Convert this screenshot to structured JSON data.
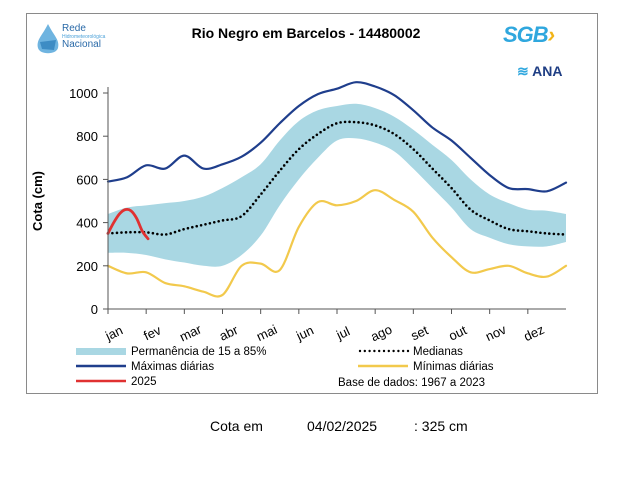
{
  "header": {
    "title": "Rio Negro em Barcelos - 14480002",
    "logo_rede": {
      "line1": "Rede",
      "line2": "Hidrometeorológica",
      "line3": "Nacional"
    },
    "logo_sgb": "SGB",
    "logo_ana": "ANA"
  },
  "footer": {
    "label": "Cota em",
    "date": "04/02/2025",
    "value": ": 325 cm"
  },
  "chart_data": {
    "type": "line",
    "title": "Rio Negro em Barcelos - 14480002",
    "xlabel": "",
    "ylabel": "Cota (cm)",
    "ylim": [
      0,
      1000
    ],
    "yticks": [
      0,
      200,
      400,
      600,
      800,
      1000
    ],
    "ytick_labels": [
      "0",
      "200",
      "400",
      "600",
      "800",
      "1000"
    ],
    "xlim": [
      0,
      12
    ],
    "xticks": [
      0,
      1,
      2,
      3,
      4,
      5,
      6,
      7,
      8,
      9,
      10,
      11
    ],
    "xtick_labels": [
      "jan",
      "fev",
      "mar",
      "abr",
      "mai",
      "jun",
      "jul",
      "ago",
      "set",
      "out",
      "nov",
      "dez"
    ],
    "x": [
      0,
      0.5,
      1,
      1.5,
      2,
      2.5,
      3,
      3.5,
      4,
      4.5,
      5,
      5.5,
      6,
      6.5,
      7,
      7.5,
      8,
      8.5,
      9,
      9.5,
      10,
      10.5,
      11,
      11.5,
      12
    ],
    "series": [
      {
        "name": "Máximas diárias",
        "color": "#1f3e8c",
        "values": [
          590,
          610,
          665,
          650,
          710,
          650,
          670,
          705,
          770,
          860,
          940,
          995,
          1020,
          1050,
          1030,
          990,
          920,
          840,
          780,
          700,
          620,
          560,
          555,
          545,
          585
        ]
      },
      {
        "name": "Permanência 85%",
        "color": "#a9d7e3",
        "role": "band_upper",
        "values": [
          440,
          470,
          480,
          490,
          500,
          520,
          560,
          610,
          670,
          780,
          870,
          920,
          940,
          950,
          930,
          890,
          830,
          760,
          690,
          600,
          530,
          490,
          460,
          455,
          440
        ]
      },
      {
        "name": "Permanência 15%",
        "color": "#a9d7e3",
        "role": "band_lower",
        "values": [
          260,
          260,
          250,
          230,
          215,
          200,
          200,
          250,
          340,
          480,
          600,
          700,
          780,
          790,
          770,
          730,
          650,
          560,
          470,
          370,
          330,
          300,
          290,
          290,
          310
        ]
      },
      {
        "name": "Medianas",
        "color": "#000000",
        "style": "dotted",
        "values": [
          350,
          355,
          355,
          345,
          370,
          390,
          410,
          430,
          530,
          640,
          740,
          810,
          860,
          865,
          850,
          810,
          740,
          650,
          560,
          460,
          410,
          370,
          360,
          350,
          345
        ]
      },
      {
        "name": "Mínimas diárias",
        "color": "#f2c94c",
        "values": [
          200,
          165,
          170,
          120,
          105,
          80,
          65,
          200,
          210,
          180,
          380,
          495,
          480,
          500,
          550,
          505,
          450,
          330,
          240,
          170,
          185,
          200,
          165,
          150,
          200
        ]
      },
      {
        "name": "2025",
        "color": "#e03131",
        "x": [
          0,
          0.15,
          0.3,
          0.45,
          0.6,
          0.75,
          0.9,
          1.05
        ],
        "values": [
          350,
          400,
          440,
          460,
          455,
          420,
          360,
          325
        ]
      }
    ],
    "legend": [
      {
        "label": "Permanência de 15 a 85%",
        "color": "#a9d7e3",
        "kind": "band"
      },
      {
        "label": "Medianas",
        "color": "#000000",
        "kind": "dotted"
      },
      {
        "label": "Máximas diárias",
        "color": "#1f3e8c",
        "kind": "line"
      },
      {
        "label": "Mínimas diárias",
        "color": "#f2c94c",
        "kind": "line"
      },
      {
        "label": "2025",
        "color": "#e03131",
        "kind": "line"
      }
    ],
    "legend_position": "bottom",
    "note": "Base de dados: 1967 a 2023",
    "grid": false
  }
}
